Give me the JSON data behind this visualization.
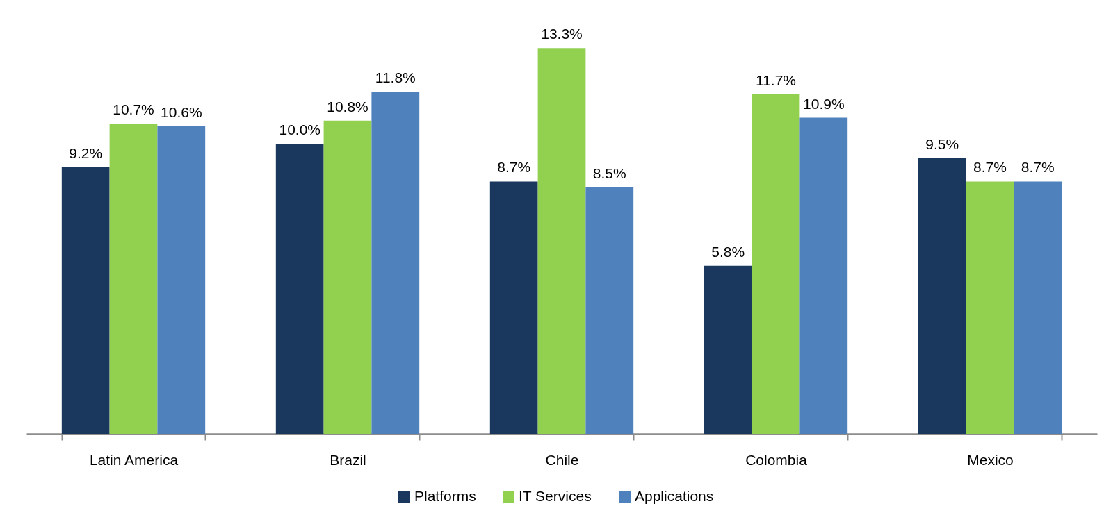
{
  "chart_data": {
    "type": "bar",
    "categories": [
      "Latin America",
      "Brazil",
      "Chile",
      "Colombia",
      "Mexico"
    ],
    "series": [
      {
        "name": "Platforms",
        "color": "#1a375e",
        "values": [
          9.2,
          10.0,
          8.7,
          5.8,
          9.5
        ],
        "value_labels": [
          "9.2%",
          "10.0%",
          "8.7%",
          "5.8%",
          "9.5%"
        ]
      },
      {
        "name": "IT Services",
        "color": "#92d050",
        "values": [
          10.7,
          10.8,
          13.3,
          11.7,
          8.7
        ],
        "value_labels": [
          "10.7%",
          "10.8%",
          "13.3%",
          "11.7%",
          "8.7%"
        ]
      },
      {
        "name": "Applications",
        "color": "#4f81bd",
        "values": [
          10.6,
          11.8,
          8.5,
          10.9,
          8.7
        ],
        "value_labels": [
          "10.6%",
          "11.8%",
          "8.5%",
          "10.9%",
          "8.7%"
        ]
      }
    ],
    "legend": "bottom"
  }
}
